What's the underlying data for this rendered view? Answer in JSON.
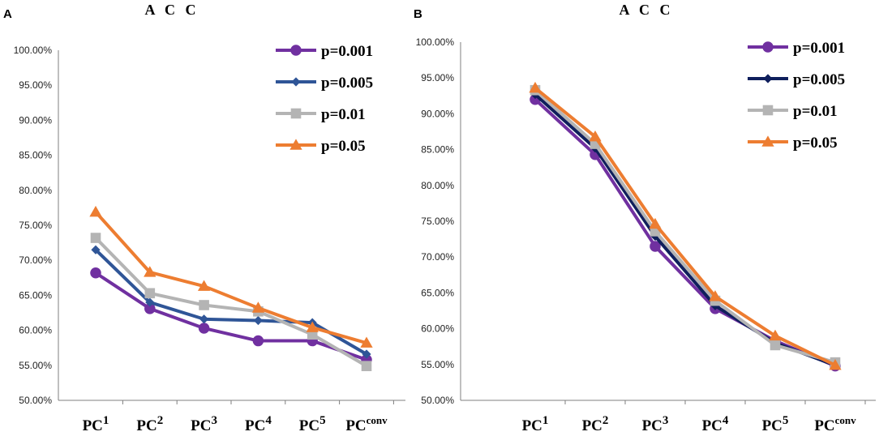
{
  "chart_data": [
    {
      "panel": "A",
      "type": "line",
      "title": "A C C",
      "categories": [
        {
          "base": "PC",
          "sup": "1"
        },
        {
          "base": "PC",
          "sup": "2"
        },
        {
          "base": "PC",
          "sup": "3"
        },
        {
          "base": "PC",
          "sup": "4"
        },
        {
          "base": "PC",
          "sup": "5"
        },
        {
          "base": "PC",
          "sup": "conv"
        }
      ],
      "ylim": [
        50,
        100
      ],
      "yticks": [
        "50.00%",
        "55.00%",
        "60.00%",
        "65.00%",
        "70.00%",
        "75.00%",
        "80.00%",
        "85.00%",
        "90.00%",
        "95.00%",
        "100.00%"
      ],
      "legend_position": "top-right",
      "series": [
        {
          "name": "p=0.001",
          "color": "#7030a0",
          "marker": "circle",
          "values": [
            68.2,
            63.1,
            60.3,
            58.5,
            58.5,
            55.8
          ]
        },
        {
          "name": "p=0.005",
          "color": "#2f5597",
          "marker": "diamond",
          "values": [
            71.5,
            64.0,
            61.6,
            61.4,
            61.1,
            56.6
          ]
        },
        {
          "name": "p=0.01",
          "color": "#b4b4b4",
          "marker": "square",
          "values": [
            73.2,
            65.3,
            63.6,
            62.7,
            59.4,
            54.9
          ]
        },
        {
          "name": "p=0.05",
          "color": "#ed7d31",
          "marker": "triangle",
          "values": [
            76.9,
            68.3,
            66.3,
            63.2,
            60.4,
            58.2
          ]
        }
      ]
    },
    {
      "panel": "B",
      "type": "line",
      "title": "A C C",
      "categories": [
        {
          "base": "PC",
          "sup": "1"
        },
        {
          "base": "PC",
          "sup": "2"
        },
        {
          "base": "PC",
          "sup": "3"
        },
        {
          "base": "PC",
          "sup": "4"
        },
        {
          "base": "PC",
          "sup": "5"
        },
        {
          "base": "PC",
          "sup": "conv"
        }
      ],
      "ylim": [
        50,
        100
      ],
      "yticks": [
        "50.00%",
        "55.00%",
        "60.00%",
        "65.00%",
        "70.00%",
        "75.00%",
        "80.00%",
        "85.00%",
        "90.00%",
        "95.00%",
        "100.00%"
      ],
      "legend_position": "top-right",
      "series": [
        {
          "name": "p=0.001",
          "color": "#7030a0",
          "marker": "circle",
          "values": [
            92.0,
            84.3,
            71.5,
            62.8,
            58.3,
            54.8
          ]
        },
        {
          "name": "p=0.005",
          "color": "#0f1f5c",
          "marker": "diamond",
          "values": [
            92.7,
            85.2,
            72.9,
            63.2,
            58.0,
            54.9
          ]
        },
        {
          "name": "p=0.01",
          "color": "#b4b4b4",
          "marker": "square",
          "values": [
            93.3,
            85.8,
            73.6,
            63.9,
            57.7,
            55.3
          ]
        },
        {
          "name": "p=0.05",
          "color": "#ed7d31",
          "marker": "triangle",
          "values": [
            93.6,
            86.8,
            74.6,
            64.5,
            59.0,
            54.9
          ]
        }
      ]
    }
  ]
}
